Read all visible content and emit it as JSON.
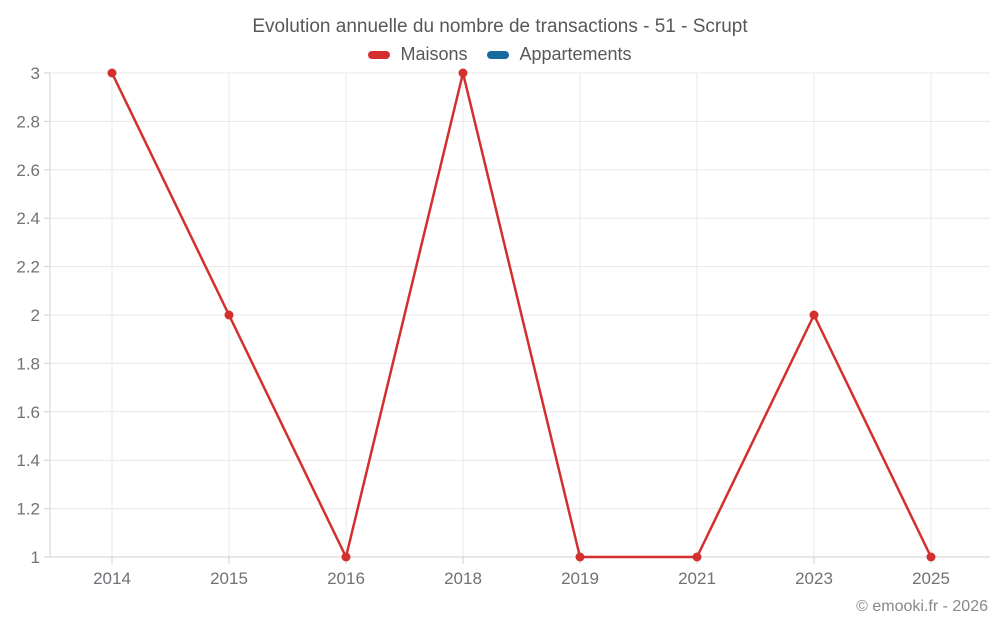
{
  "chart_data": {
    "type": "line",
    "title": "Evolution annuelle du nombre de transactions - 51 - Scrupt",
    "categories": [
      "2014",
      "2015",
      "2016",
      "2018",
      "2019",
      "2021",
      "2023",
      "2025"
    ],
    "series": [
      {
        "name": "Maisons",
        "color": "#d32f2f",
        "values": [
          3,
          2,
          1,
          3,
          1,
          1,
          2,
          1
        ]
      },
      {
        "name": "Appartements",
        "color": "#17699e",
        "values": []
      }
    ],
    "ylim": [
      1,
      3
    ],
    "yticks": [
      "3",
      "2.8",
      "2.6",
      "2.4",
      "2.2",
      "2",
      "1.8",
      "1.6",
      "1.4",
      "1.2",
      "1"
    ],
    "xlabel": "",
    "ylabel": "",
    "grid": true,
    "legend_position": "top"
  },
  "footer": {
    "text": "© emooki.fr - 2026"
  },
  "colors": {
    "background": "#ffffff",
    "grid": "#e8e8e8",
    "axis": "#d0d0d0",
    "tick_label": "#6f7276",
    "title_text": "#56585b",
    "footer_text": "#85888c"
  }
}
